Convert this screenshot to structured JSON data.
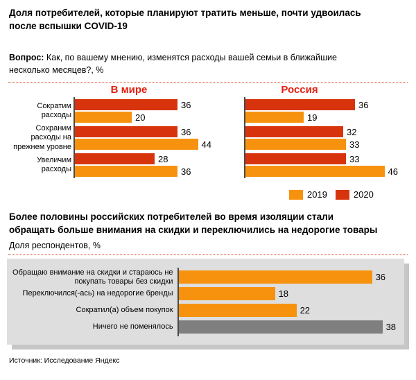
{
  "header": {
    "title": "Доля потребителей, которые планируют тратить меньше, почти удвоилась\nпосле вспышки COVID-19",
    "question_label": "Вопрос:",
    "question_text": "Как, по вашему мнению, изменятся расходы вашей семьи в ближайшие\nнесколько месяцев?, %"
  },
  "section2": {
    "title": "Более половины российских потребителей во время изоляции стали\nобращать больше внимания на скидки и переключились на недорогие товары",
    "subtitle": "Доля респондентов, %"
  },
  "footer": {
    "source": "Источник: Исследование Яндекс"
  },
  "colors": {
    "orange_2019": "#f7920e",
    "red_2020": "#d7340d",
    "header_red": "#e32112",
    "gray_bar": "#7f7f7f",
    "panel_gray": "#dedede",
    "panel_shadow": "#c6c6c6",
    "axis": "#4a4a4a",
    "divider_red": "#e0401a"
  },
  "chart_data": [
    {
      "type": "bar",
      "orientation": "horizontal",
      "categories": [
        "Сократим расходы",
        "Сохраним расходы на прежнем уровне",
        "Увеличим расходы"
      ],
      "bar_order": [
        "2020",
        "2019"
      ],
      "series_color_keys": {
        "2019": "orange_2019",
        "2020": "red_2020"
      },
      "value_labels": true,
      "panels": [
        {
          "title": "В мире",
          "xmax": 48,
          "series": [
            {
              "name": "2020",
              "values": [
                36,
                36,
                28
              ]
            },
            {
              "name": "2019",
              "values": [
                20,
                44,
                36
              ]
            }
          ]
        },
        {
          "title": "Россия",
          "xmax": 50,
          "series": [
            {
              "name": "2020",
              "values": [
                36,
                32,
                33
              ]
            },
            {
              "name": "2019",
              "values": [
                19,
                33,
                46
              ]
            }
          ]
        }
      ],
      "legend": [
        {
          "label": "2019",
          "color_key": "orange_2019"
        },
        {
          "label": "2020",
          "color_key": "red_2020"
        }
      ],
      "legend_position": "bottom-right"
    },
    {
      "type": "bar",
      "orientation": "horizontal",
      "categories": [
        "Обращаю внимание на скидки и стараюсь не покупать товары без скидки",
        "Переключился(-ась) на недорогие бренды",
        "Сократил(а) объем покупок",
        "Ничего не поменялось"
      ],
      "values": [
        36,
        18,
        22,
        38
      ],
      "bar_color_keys": [
        "orange_2019",
        "orange_2019",
        "orange_2019",
        "gray_bar"
      ],
      "xmax": 42,
      "value_labels": true
    }
  ]
}
